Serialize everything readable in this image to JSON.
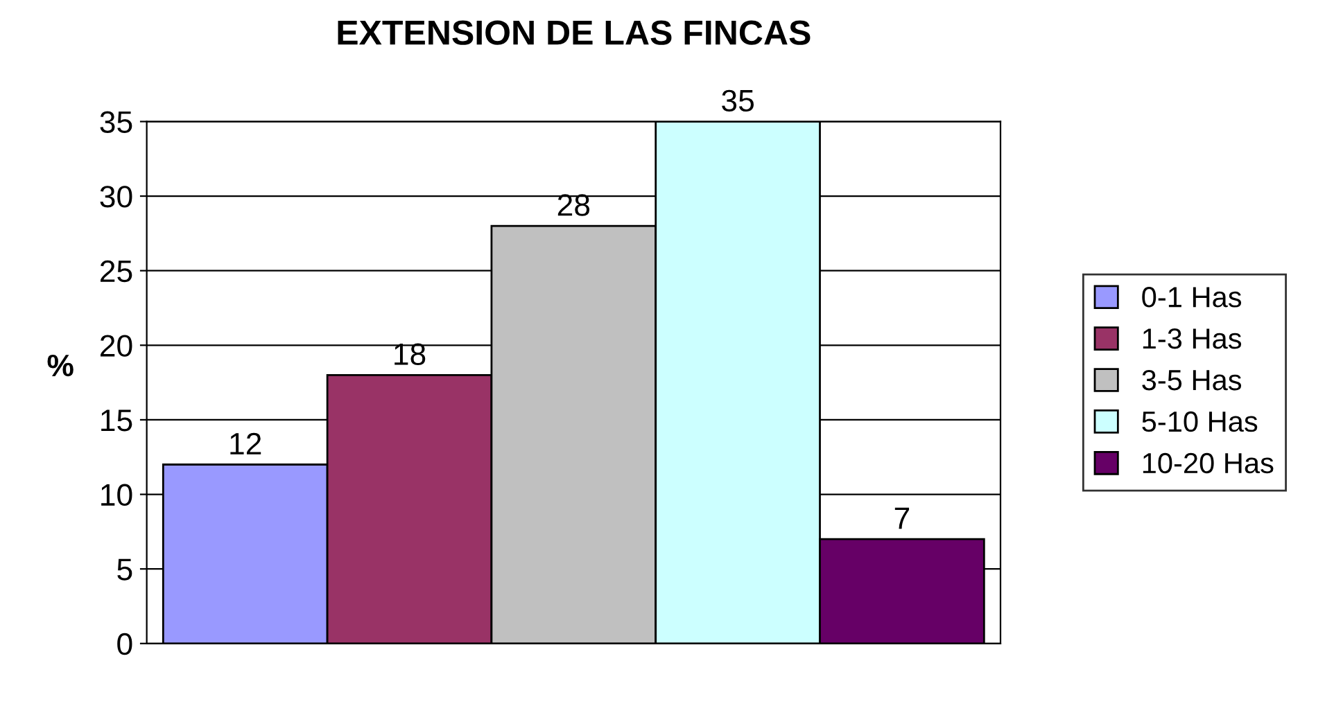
{
  "chart_data": {
    "type": "bar",
    "title": "EXTENSION DE LAS FINCAS",
    "ylabel": "%",
    "categories": [
      null,
      null,
      null,
      null,
      null
    ],
    "series": [
      {
        "name": "0-1 Has",
        "color": "#9999ff",
        "values": [
          12,
          null,
          null,
          null,
          null
        ]
      },
      {
        "name": "1-3 Has",
        "color": "#993366",
        "values": [
          null,
          18,
          null,
          null,
          null
        ]
      },
      {
        "name": "3-5 Has",
        "color": "#c0c0c0",
        "values": [
          null,
          null,
          28,
          null,
          null
        ]
      },
      {
        "name": "5-10 Has",
        "color": "#ccffff",
        "values": [
          null,
          null,
          null,
          35,
          null
        ]
      },
      {
        "name": "10-20 Has",
        "color": "#660066",
        "values": [
          null,
          null,
          null,
          null,
          7
        ]
      }
    ],
    "ylim": [
      0,
      35
    ],
    "yticks": [
      0,
      5,
      10,
      15,
      20,
      25,
      30,
      35
    ],
    "grid": "y",
    "legend": "right",
    "data_labels": true
  }
}
